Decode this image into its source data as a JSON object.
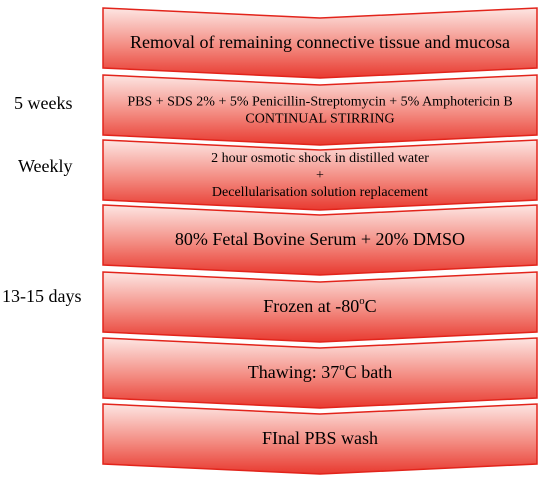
{
  "side_labels": [
    "5 weeks",
    "Weekly",
    "13-15 days"
  ],
  "steps": [
    {
      "lines": [
        [
          "Removal of remaining connective tissue and mucosa"
        ]
      ]
    },
    {
      "lines": [
        [
          "PBS + SDS 2% + 5% Penicillin-Streptomycin + 5% Amphotericin B"
        ],
        [
          "CONTINUAL STIRRING"
        ]
      ]
    },
    {
      "lines": [
        [
          "2 hour osmotic shock in distilled water"
        ],
        [
          "+"
        ],
        [
          "Decellularisation solution replacement"
        ]
      ]
    },
    {
      "lines": [
        [
          "80% Fetal Bovine Serum + 20% DMSO"
        ]
      ]
    },
    {
      "lines": [
        [
          "Frozen at -80",
          "o",
          "C"
        ]
      ]
    },
    {
      "lines": [
        [
          "Thawing: 37",
          "o",
          "C bath"
        ]
      ]
    },
    {
      "lines": [
        [
          "FInal PBS wash"
        ]
      ]
    }
  ]
}
